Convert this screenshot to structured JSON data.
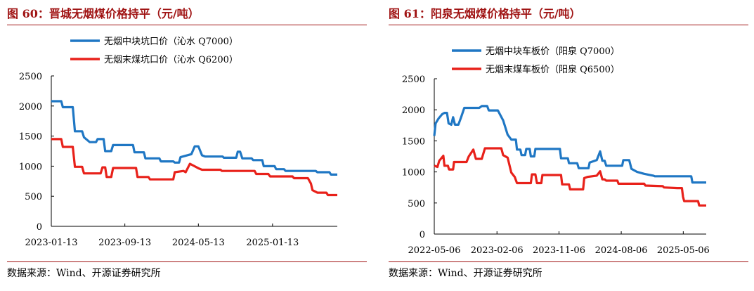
{
  "panels": [
    {
      "title": "图 60：晋城无烟煤价格持平（元/吨）",
      "source": "数据来源：Wind、开源证券研究所"
    },
    {
      "title": "图 61：阳泉无烟煤价格持平（元/吨）",
      "source": "数据来源：Wind、开源证券研究所"
    }
  ],
  "chart_data": [
    {
      "type": "line",
      "title": "晋城无烟煤价格持平（元/吨）",
      "xlabel": "",
      "ylabel": "",
      "ylim": [
        0,
        2500
      ],
      "yticks": [
        0,
        500,
        1000,
        1500,
        2000,
        2500
      ],
      "xlim": [
        "2023-01-13",
        "2025-08-15"
      ],
      "xticks": [
        "2023-01-13",
        "2023-09-13",
        "2024-05-13",
        "2025-01-13"
      ],
      "grid": false,
      "legend_position": "top-left",
      "series": [
        {
          "name": "无烟中块坑口价（沁水 Q7000）",
          "color": "#1f77c4",
          "points": [
            [
              "2023-01-13",
              2080
            ],
            [
              "2023-02-15",
              2080
            ],
            [
              "2023-02-20",
              1980
            ],
            [
              "2023-03-25",
              1980
            ],
            [
              "2023-04-01",
              1580
            ],
            [
              "2023-04-25",
              1580
            ],
            [
              "2023-05-01",
              1480
            ],
            [
              "2023-05-20",
              1400
            ],
            [
              "2023-06-10",
              1400
            ],
            [
              "2023-06-15",
              1450
            ],
            [
              "2023-07-05",
              1450
            ],
            [
              "2023-07-10",
              1250
            ],
            [
              "2023-07-30",
              1250
            ],
            [
              "2023-08-05",
              1350
            ],
            [
              "2023-10-10",
              1350
            ],
            [
              "2023-10-15",
              1230
            ],
            [
              "2023-11-15",
              1230
            ],
            [
              "2023-11-20",
              1130
            ],
            [
              "2024-01-05",
              1130
            ],
            [
              "2024-01-10",
              1080
            ],
            [
              "2024-02-20",
              1080
            ],
            [
              "2024-02-25",
              1060
            ],
            [
              "2024-03-10",
              1060
            ],
            [
              "2024-03-15",
              1150
            ],
            [
              "2024-04-20",
              1200
            ],
            [
              "2024-05-01",
              1330
            ],
            [
              "2024-05-13",
              1330
            ],
            [
              "2024-05-25",
              1180
            ],
            [
              "2024-06-05",
              1160
            ],
            [
              "2024-08-01",
              1160
            ],
            [
              "2024-08-05",
              1140
            ],
            [
              "2024-09-15",
              1140
            ],
            [
              "2024-09-20",
              1240
            ],
            [
              "2024-09-28",
              1240
            ],
            [
              "2024-10-05",
              1130
            ],
            [
              "2024-11-05",
              1130
            ],
            [
              "2024-11-10",
              1100
            ],
            [
              "2024-12-10",
              1100
            ],
            [
              "2024-12-15",
              1000
            ],
            [
              "2025-01-20",
              1000
            ],
            [
              "2025-01-25",
              950
            ],
            [
              "2025-02-20",
              950
            ],
            [
              "2025-02-25",
              920
            ],
            [
              "2025-06-05",
              920
            ],
            [
              "2025-06-10",
              900
            ],
            [
              "2025-07-20",
              900
            ],
            [
              "2025-07-25",
              860
            ],
            [
              "2025-08-15",
              860
            ]
          ]
        },
        {
          "name": "无烟末煤坑口价（沁水 Q6200）",
          "color": "#e8211a",
          "points": [
            [
              "2023-01-13",
              1450
            ],
            [
              "2023-02-15",
              1450
            ],
            [
              "2023-02-20",
              1320
            ],
            [
              "2023-03-25",
              1320
            ],
            [
              "2023-04-01",
              990
            ],
            [
              "2023-04-25",
              990
            ],
            [
              "2023-05-01",
              880
            ],
            [
              "2023-06-25",
              880
            ],
            [
              "2023-07-01",
              980
            ],
            [
              "2023-07-10",
              980
            ],
            [
              "2023-07-15",
              820
            ],
            [
              "2023-07-30",
              820
            ],
            [
              "2023-08-05",
              970
            ],
            [
              "2023-10-20",
              970
            ],
            [
              "2023-10-25",
              820
            ],
            [
              "2023-11-30",
              820
            ],
            [
              "2023-12-05",
              780
            ],
            [
              "2024-02-20",
              780
            ],
            [
              "2024-02-25",
              900
            ],
            [
              "2024-03-25",
              920
            ],
            [
              "2024-04-01",
              900
            ],
            [
              "2024-04-15",
              1040
            ],
            [
              "2024-05-15",
              960
            ],
            [
              "2024-05-25",
              940
            ],
            [
              "2024-07-25",
              940
            ],
            [
              "2024-07-30",
              920
            ],
            [
              "2024-11-15",
              920
            ],
            [
              "2024-11-20",
              870
            ],
            [
              "2024-12-30",
              870
            ],
            [
              "2025-01-05",
              830
            ],
            [
              "2025-03-20",
              830
            ],
            [
              "2025-03-25",
              800
            ],
            [
              "2025-05-10",
              800
            ],
            [
              "2025-05-20",
              710
            ],
            [
              "2025-05-25",
              600
            ],
            [
              "2025-06-10",
              560
            ],
            [
              "2025-07-10",
              560
            ],
            [
              "2025-07-15",
              520
            ],
            [
              "2025-08-15",
              520
            ]
          ]
        }
      ]
    },
    {
      "type": "line",
      "title": "阳泉无烟煤价格持平（元/吨）",
      "xlabel": "",
      "ylabel": "",
      "ylim": [
        0,
        2500
      ],
      "yticks": [
        0,
        500,
        1000,
        1500,
        2000,
        2500
      ],
      "xlim": [
        "2022-05-06",
        "2025-08-15"
      ],
      "xticks": [
        "2022-05-06",
        "2023-02-06",
        "2023-11-06",
        "2024-08-06",
        "2025-05-06"
      ],
      "grid": false,
      "legend_position": "top-center",
      "series": [
        {
          "name": "无烟中块车板价（阳泉 Q7000）",
          "color": "#1f77c4",
          "points": [
            [
              "2022-05-06",
              1580
            ],
            [
              "2022-05-12",
              1780
            ],
            [
              "2022-05-25",
              1860
            ],
            [
              "2022-06-10",
              1930
            ],
            [
              "2022-06-20",
              1950
            ],
            [
              "2022-07-01",
              1950
            ],
            [
              "2022-07-08",
              1780
            ],
            [
              "2022-07-20",
              1760
            ],
            [
              "2022-07-28",
              1880
            ],
            [
              "2022-08-05",
              1760
            ],
            [
              "2022-08-20",
              1760
            ],
            [
              "2022-09-01",
              1880
            ],
            [
              "2022-09-15",
              2030
            ],
            [
              "2022-11-20",
              2030
            ],
            [
              "2022-12-01",
              2060
            ],
            [
              "2022-12-25",
              2060
            ],
            [
              "2023-01-01",
              1990
            ],
            [
              "2023-02-10",
              1990
            ],
            [
              "2023-03-05",
              1830
            ],
            [
              "2023-03-25",
              1600
            ],
            [
              "2023-04-10",
              1520
            ],
            [
              "2023-04-30",
              1520
            ],
            [
              "2023-05-05",
              1360
            ],
            [
              "2023-05-20",
              1360
            ],
            [
              "2023-05-25",
              1270
            ],
            [
              "2023-06-10",
              1270
            ],
            [
              "2023-06-15",
              1370
            ],
            [
              "2023-06-30",
              1370
            ],
            [
              "2023-07-05",
              1250
            ],
            [
              "2023-07-20",
              1250
            ],
            [
              "2023-07-25",
              1370
            ],
            [
              "2023-11-10",
              1370
            ],
            [
              "2023-11-15",
              1220
            ],
            [
              "2023-12-15",
              1220
            ],
            [
              "2023-12-20",
              1140
            ],
            [
              "2024-01-25",
              1140
            ],
            [
              "2024-02-01",
              1060
            ],
            [
              "2024-03-15",
              1060
            ],
            [
              "2024-03-20",
              1150
            ],
            [
              "2024-04-20",
              1190
            ],
            [
              "2024-05-05",
              1330
            ],
            [
              "2024-05-15",
              1180
            ],
            [
              "2024-05-25",
              1180
            ],
            [
              "2024-06-01",
              1100
            ],
            [
              "2024-08-10",
              1100
            ],
            [
              "2024-08-15",
              1190
            ],
            [
              "2024-09-10",
              1190
            ],
            [
              "2024-09-20",
              1050
            ],
            [
              "2024-10-15",
              1000
            ],
            [
              "2024-11-15",
              970
            ],
            [
              "2024-12-25",
              940
            ],
            [
              "2025-01-01",
              930
            ],
            [
              "2025-06-10",
              930
            ],
            [
              "2025-06-15",
              830
            ],
            [
              "2025-08-15",
              830
            ]
          ]
        },
        {
          "name": "无烟末煤车板价（阳泉 Q6500）",
          "color": "#e8211a",
          "points": [
            [
              "2022-05-06",
              1100
            ],
            [
              "2022-05-20",
              1080
            ],
            [
              "2022-05-28",
              1180
            ],
            [
              "2022-06-15",
              1260
            ],
            [
              "2022-06-20",
              1100
            ],
            [
              "2022-07-05",
              1100
            ],
            [
              "2022-07-10",
              1040
            ],
            [
              "2022-07-28",
              1040
            ],
            [
              "2022-08-01",
              1160
            ],
            [
              "2022-09-25",
              1160
            ],
            [
              "2022-10-05",
              1250
            ],
            [
              "2022-10-25",
              1360
            ],
            [
              "2022-11-05",
              1210
            ],
            [
              "2022-12-01",
              1210
            ],
            [
              "2022-12-15",
              1380
            ],
            [
              "2023-02-25",
              1380
            ],
            [
              "2023-03-05",
              1270
            ],
            [
              "2023-03-25",
              1230
            ],
            [
              "2023-04-10",
              990
            ],
            [
              "2023-04-25",
              920
            ],
            [
              "2023-05-05",
              820
            ],
            [
              "2023-07-05",
              820
            ],
            [
              "2023-07-10",
              960
            ],
            [
              "2023-07-25",
              960
            ],
            [
              "2023-08-01",
              820
            ],
            [
              "2023-08-20",
              820
            ],
            [
              "2023-08-25",
              950
            ],
            [
              "2023-11-15",
              950
            ],
            [
              "2023-11-20",
              800
            ],
            [
              "2023-12-20",
              800
            ],
            [
              "2023-12-25",
              720
            ],
            [
              "2024-02-20",
              720
            ],
            [
              "2024-02-25",
              900
            ],
            [
              "2024-03-10",
              920
            ],
            [
              "2024-04-20",
              940
            ],
            [
              "2024-05-05",
              1010
            ],
            [
              "2024-05-15",
              880
            ],
            [
              "2024-05-25",
              880
            ],
            [
              "2024-06-01",
              860
            ],
            [
              "2024-07-20",
              860
            ],
            [
              "2024-07-25",
              810
            ],
            [
              "2024-11-15",
              810
            ],
            [
              "2024-11-20",
              780
            ],
            [
              "2025-02-05",
              770
            ],
            [
              "2025-02-10",
              750
            ],
            [
              "2025-04-10",
              740
            ],
            [
              "2025-04-30",
              740
            ],
            [
              "2025-05-05",
              600
            ],
            [
              "2025-05-10",
              530
            ],
            [
              "2025-07-10",
              530
            ],
            [
              "2025-07-15",
              460
            ],
            [
              "2025-08-15",
              460
            ]
          ]
        }
      ]
    }
  ]
}
